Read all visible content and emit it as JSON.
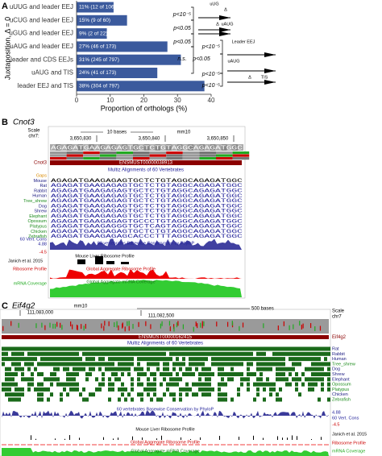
{
  "chart_data": {
    "type": "bar",
    "orientation": "horizontal",
    "panel_label": "A",
    "categories": [
      "uUUG and leader EEJ",
      "uCUG and leader EEJ",
      "uGUG and leader EEJ",
      "uAUG and leader EEJ",
      "leader and CDS EEJs",
      "uAUG and TIS",
      "leader EEJ and TIS"
    ],
    "values": [
      11,
      15,
      9,
      27,
      31,
      24,
      38
    ],
    "value_labels": [
      "11% (12 of 106)",
      "15% (9 of 60)",
      "9% (2 of 22)",
      "27% (46 of 173)",
      "31% (245 of 797)",
      "24% (41 of 173)",
      "38% (304 of 797)"
    ],
    "color": "#3b5a9d",
    "xlim": [
      0,
      40
    ],
    "xticks": [
      0,
      10,
      20,
      30,
      40
    ],
    "xlabel": "Proportion of orthologs (%)",
    "ylabel": "Juxtaposition, Δ = 0",
    "annotations": [
      "p<10⁻⁵",
      "p<0.05",
      "p<0.05",
      "p<10⁻⁵",
      "n.s.",
      "p<0.05",
      "p<10⁻⁵",
      "p<10⁻⁵"
    ],
    "diagram_labels": [
      "uUG",
      "Δ",
      "Δ",
      "uAUG",
      "Leader EEJ",
      "uAUG",
      "Δ",
      "TIS"
    ]
  },
  "panel_b": {
    "label": "B",
    "gene": "Cnot3",
    "scale": "Scale",
    "chrom": "chr7:",
    "scale_bar": "10 bases",
    "assembly": "mm10",
    "coordinates": [
      "3,650,830",
      "3,650,840",
      "3,650,850"
    ],
    "sequence": "AGAGATGAAGAGAGTGCTCTGTAGGCAGAGATGGC",
    "transcript": "ENSMUST00000038913",
    "track_gene": "Cnot3",
    "multiz": "Multiz Alignments of 60 Vertebrates",
    "species": [
      "Gaps",
      "Mouse",
      "Rat",
      "Rabbit",
      "Human",
      "Tree_shrew",
      "Dog",
      "Shrew",
      "Elephant",
      "Opossum",
      "Platypus",
      "Chicken",
      "Zebrafish"
    ],
    "alignments": [
      "",
      "AGAGATGAAGAGAGTGCTCTGTAGGCAGAGATGGC",
      "AGAGATGAAGAGAGTGCTCTGTAGGCAGAGATGGC",
      "AGAGATGAAGAGAGTGCTCTGTAGGCAGAGATGGC",
      "AGAGATGAAGAGAGTGCTCTGTAGGCAGAGATGGC",
      "AGAGATGAAGAGAGTGCTCTGTAGGCAGAGATGGC",
      "AGAGATGAAGAGAGTGCTCTGTAGGCAGAGATGGC",
      "AGAGATGAAGAGAGTGCTCTGTAGGCAGAGATGGC",
      "AGAGATGAAGAGAGTGCTCTGTAGGCAGAGATGGC",
      "AGAGATGAAGAGAGTGCCCTGTAGGCAGAGATGGC",
      "AGAGATGAAGAGGGTGCTCAGTAGGAAGAGATGGC",
      "AGAGATGAAGAGAGTGCTCTGTAGGCAGAGATGGC",
      "AGAGATGAAGAGAGCACCCTTTAGGCAGAGATGGC"
    ],
    "cons_label": "60 Vert. Cons",
    "cons_max": "4.88",
    "cons_min": "-4.5",
    "phylop": "60 vertebrates Basewise Conservation by PhyloP",
    "ribo_title": "Mouse Liver Ribosome Profile",
    "ribo_source": "Janich et al. 2015",
    "ribo_label": "Ribosome Profile",
    "ribo_global": "Global Aggregate Ribosome Profile",
    "mrna_label": "mRNA Coverage",
    "mrna_global": "Global Aggregate mRNA Coverage"
  },
  "panel_c": {
    "label": "C",
    "gene": "Eif4g2",
    "assembly": "mm10",
    "coordinates": [
      "111,083,000",
      "111,082,500"
    ],
    "scale_bar": "500 bases",
    "scale": "Scale",
    "chrom": "chr7",
    "transcript": "ENSMUST00000162415",
    "track_gene": "Eif4g2",
    "multiz": "Multiz Alignments of 60 Vertebrates",
    "species": [
      "Rat",
      "Rabbit",
      "Human",
      "Tree_shrew",
      "Dog",
      "Shrew",
      "Elephant",
      "Opossum",
      "Platypus",
      "Chicken",
      "Zebrafish"
    ],
    "phylop": "60 vertebrates Basewise Conservation by PhyloP",
    "cons_max": "4.88",
    "cons_label": "60 Vert. Cons",
    "cons_min": "-4.5",
    "ribo_title": "Mouse Liver Ribosome Profile",
    "ribo_source": "Janich et al. 2015",
    "ribo_global": "Global Aggregate Ribosome Profile",
    "ribo_label": "Ribosome Profile",
    "mrna_global": "Global Aggregate mRNA Coverage",
    "mrna_label": "mRNA Coverage"
  }
}
